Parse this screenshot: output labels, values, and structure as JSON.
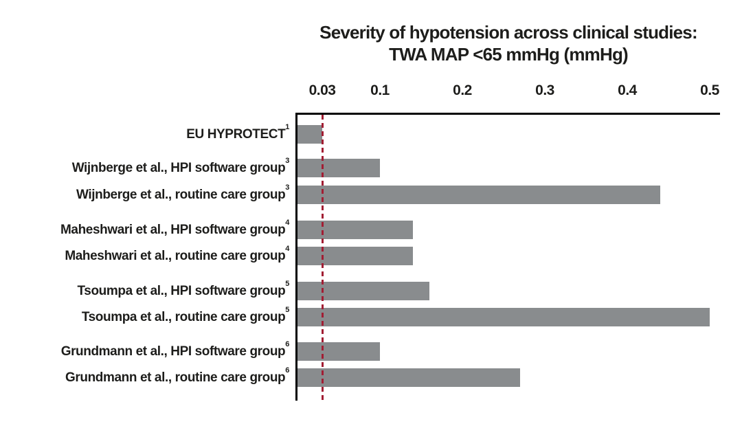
{
  "chart_data": {
    "type": "bar",
    "orientation": "horizontal",
    "title": "Severity of hypotension across clinical studies: TWA MAP <65 mmHg (mmHg)",
    "title_lines": [
      "Severity of hypotension across clinical studies:",
      "TWA MAP <65 mmHg (mmHg)"
    ],
    "rows": [
      {
        "label": "EU HYPROTECT",
        "sup": "1",
        "value": 0.03
      },
      {
        "label": "Wijnberge et al., HPI software group",
        "sup": "3",
        "value": 0.1
      },
      {
        "label": "Wijnberge et al., routine care group",
        "sup": "3",
        "value": 0.44
      },
      {
        "label": "Maheshwari et al., HPI software group",
        "sup": "4",
        "value": 0.14
      },
      {
        "label": "Maheshwari et al., routine care group",
        "sup": "4",
        "value": 0.14
      },
      {
        "label": "Tsoumpa et al., HPI software group",
        "sup": "5",
        "value": 0.16
      },
      {
        "label": "Tsoumpa et al., routine care group",
        "sup": "5",
        "value": 0.5
      },
      {
        "label": "Grundmann et al., HPI software group",
        "sup": "6",
        "value": 0.1
      },
      {
        "label": "Grundmann et al., routine care group",
        "sup": "6",
        "value": 0.27
      }
    ],
    "xlim": [
      0,
      0.5
    ],
    "x_ticks": [
      0.03,
      0.1,
      0.2,
      0.3,
      0.4,
      0.5
    ],
    "x_tick_labels": [
      "0.03",
      "0.1",
      "0.2",
      "0.3",
      "0.4",
      "0.5"
    ],
    "reference_line": {
      "value": 0.03,
      "style": "dashed"
    },
    "grid": false,
    "legend": false,
    "colors": {
      "bar": "#898c8e",
      "axis": "#000000",
      "text": "#1d1d1b",
      "reference_line": "#a21d33",
      "background": "#ffffff"
    }
  }
}
